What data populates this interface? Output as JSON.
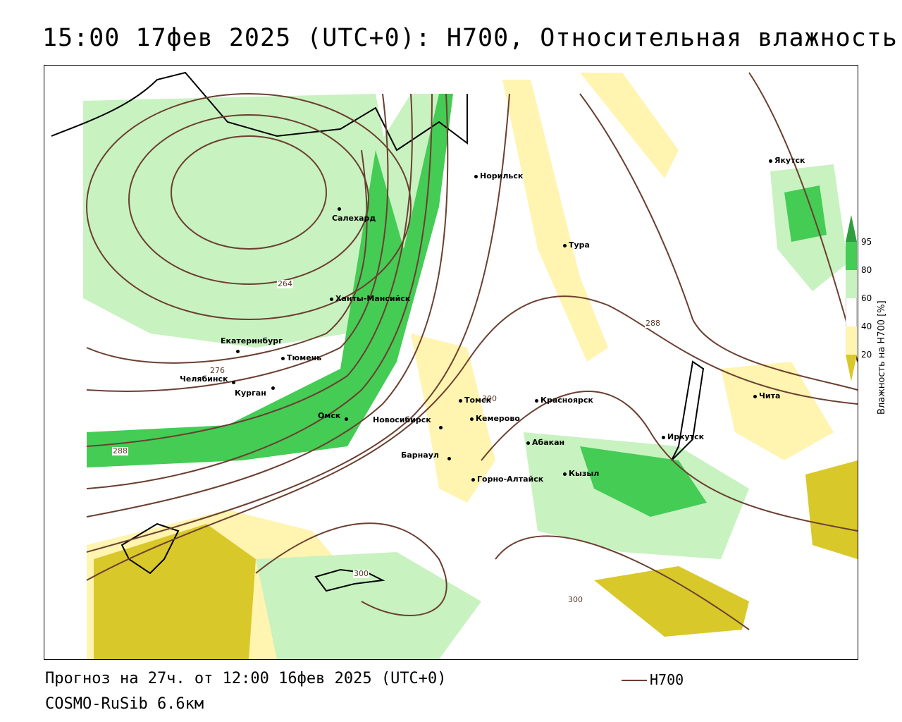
{
  "title": "15:00 17фев 2025 (UTC+0): H700, Относительная влажность",
  "footer": {
    "forecast": "Прогноз на 27ч. от 12:00 16фев 2025 (UTC+0)",
    "model": "COSMO-RuSib 6.6км"
  },
  "legend": {
    "line_label": "H700",
    "line_color": "#6b3f30"
  },
  "colorbar": {
    "title": "Влажность на H700 [%]",
    "ticks": [
      "95",
      "80",
      "60",
      "40",
      "20"
    ],
    "colors": {
      "c95": "#2e9e3e",
      "c80": "#44cc55",
      "c60": "#c8f2c0",
      "c40": "#ffffff",
      "c20": "#fff4b0",
      "c0": "#d9c829"
    }
  },
  "cities": [
    {
      "name": "Салехард"
    },
    {
      "name": "Норильск"
    },
    {
      "name": "Якутск"
    },
    {
      "name": "Тура"
    },
    {
      "name": "Ханты-Мансийск"
    },
    {
      "name": "Екатеринбург"
    },
    {
      "name": "Тюмень"
    },
    {
      "name": "Челябинск"
    },
    {
      "name": "Курган"
    },
    {
      "name": "Омск"
    },
    {
      "name": "Новосибирск"
    },
    {
      "name": "Томск"
    },
    {
      "name": "Кемерово"
    },
    {
      "name": "Красноярск"
    },
    {
      "name": "Барнаул"
    },
    {
      "name": "Абакан"
    },
    {
      "name": "Горно-Алтайск"
    },
    {
      "name": "Кызыл"
    },
    {
      "name": "Иркутск"
    },
    {
      "name": "Чита"
    }
  ],
  "contour_labels": [
    "264",
    "276",
    "288",
    "288",
    "300",
    "300",
    "300"
  ]
}
